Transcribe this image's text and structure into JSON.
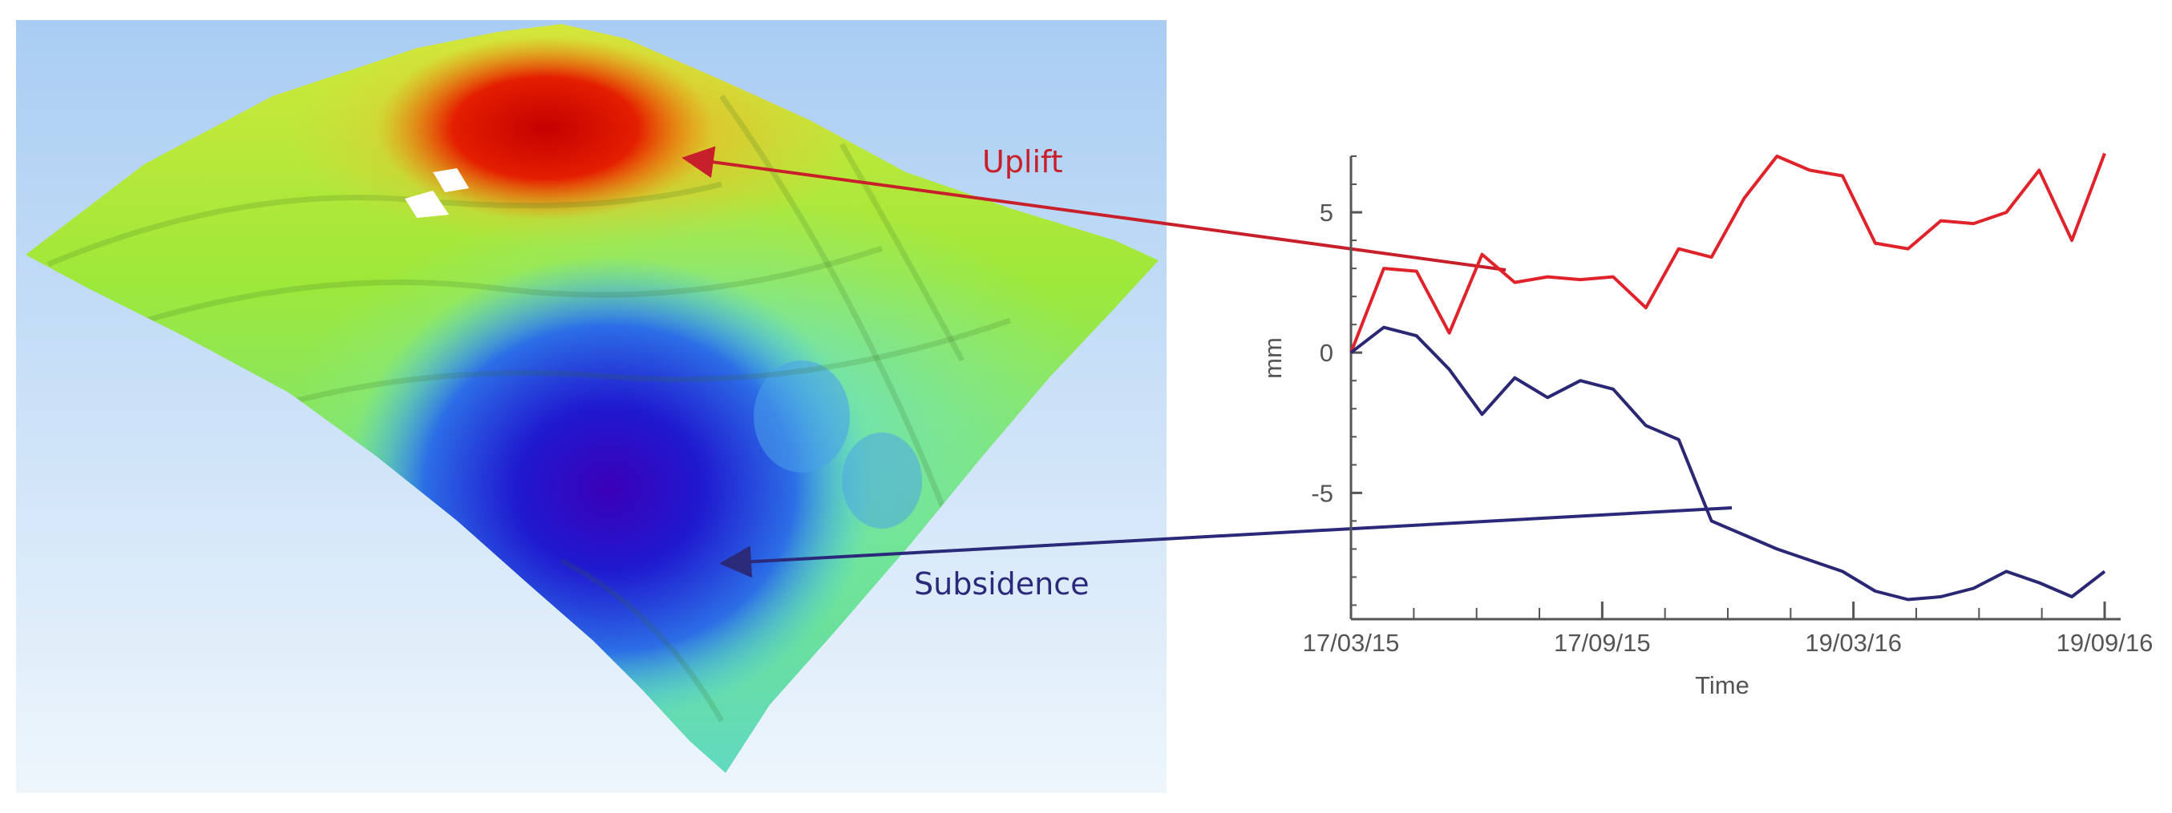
{
  "annotations": {
    "uplift": {
      "label": "Uplift",
      "color": "#c8202a"
    },
    "subsidence": {
      "label": "Subsidence",
      "color": "#2b2a7a"
    }
  },
  "colors": {
    "sky_top": "#a9cdf3",
    "sky_bottom": "#eef6fc",
    "uplift_line": "#e0232b",
    "subsidence_line": "#2a2775",
    "axis": "#555555"
  },
  "chart_data": {
    "type": "line",
    "title": "",
    "xlabel": "Time",
    "ylabel": "mm",
    "x_tick_labels": [
      "17/03/15",
      "17/09/15",
      "19/03/16",
      "19/09/16"
    ],
    "y_ticks": [
      5,
      0,
      -5
    ],
    "ylim": [
      -9.5,
      7
    ],
    "grid": false,
    "legend": "none",
    "series": [
      {
        "values": [
          0,
          3.0,
          2.9,
          0.7,
          3.5,
          2.5,
          2.7,
          2.6,
          2.7,
          1.6,
          3.7,
          3.4,
          5.5,
          7.0,
          6.5,
          6.3,
          3.9,
          3.7,
          4.7,
          4.6,
          5.0,
          6.5,
          4.0,
          7.1
        ]
      },
      {
        "values": [
          0,
          0.9,
          0.6,
          -0.6,
          -2.2,
          -0.9,
          -1.6,
          -1.0,
          -1.3,
          -2.6,
          -3.1,
          -6.0,
          -6.5,
          -7.0,
          -7.4,
          -7.8,
          -8.5,
          -8.8,
          -8.7,
          -8.4,
          -7.8,
          -8.2,
          -8.7,
          -7.8
        ]
      }
    ]
  }
}
